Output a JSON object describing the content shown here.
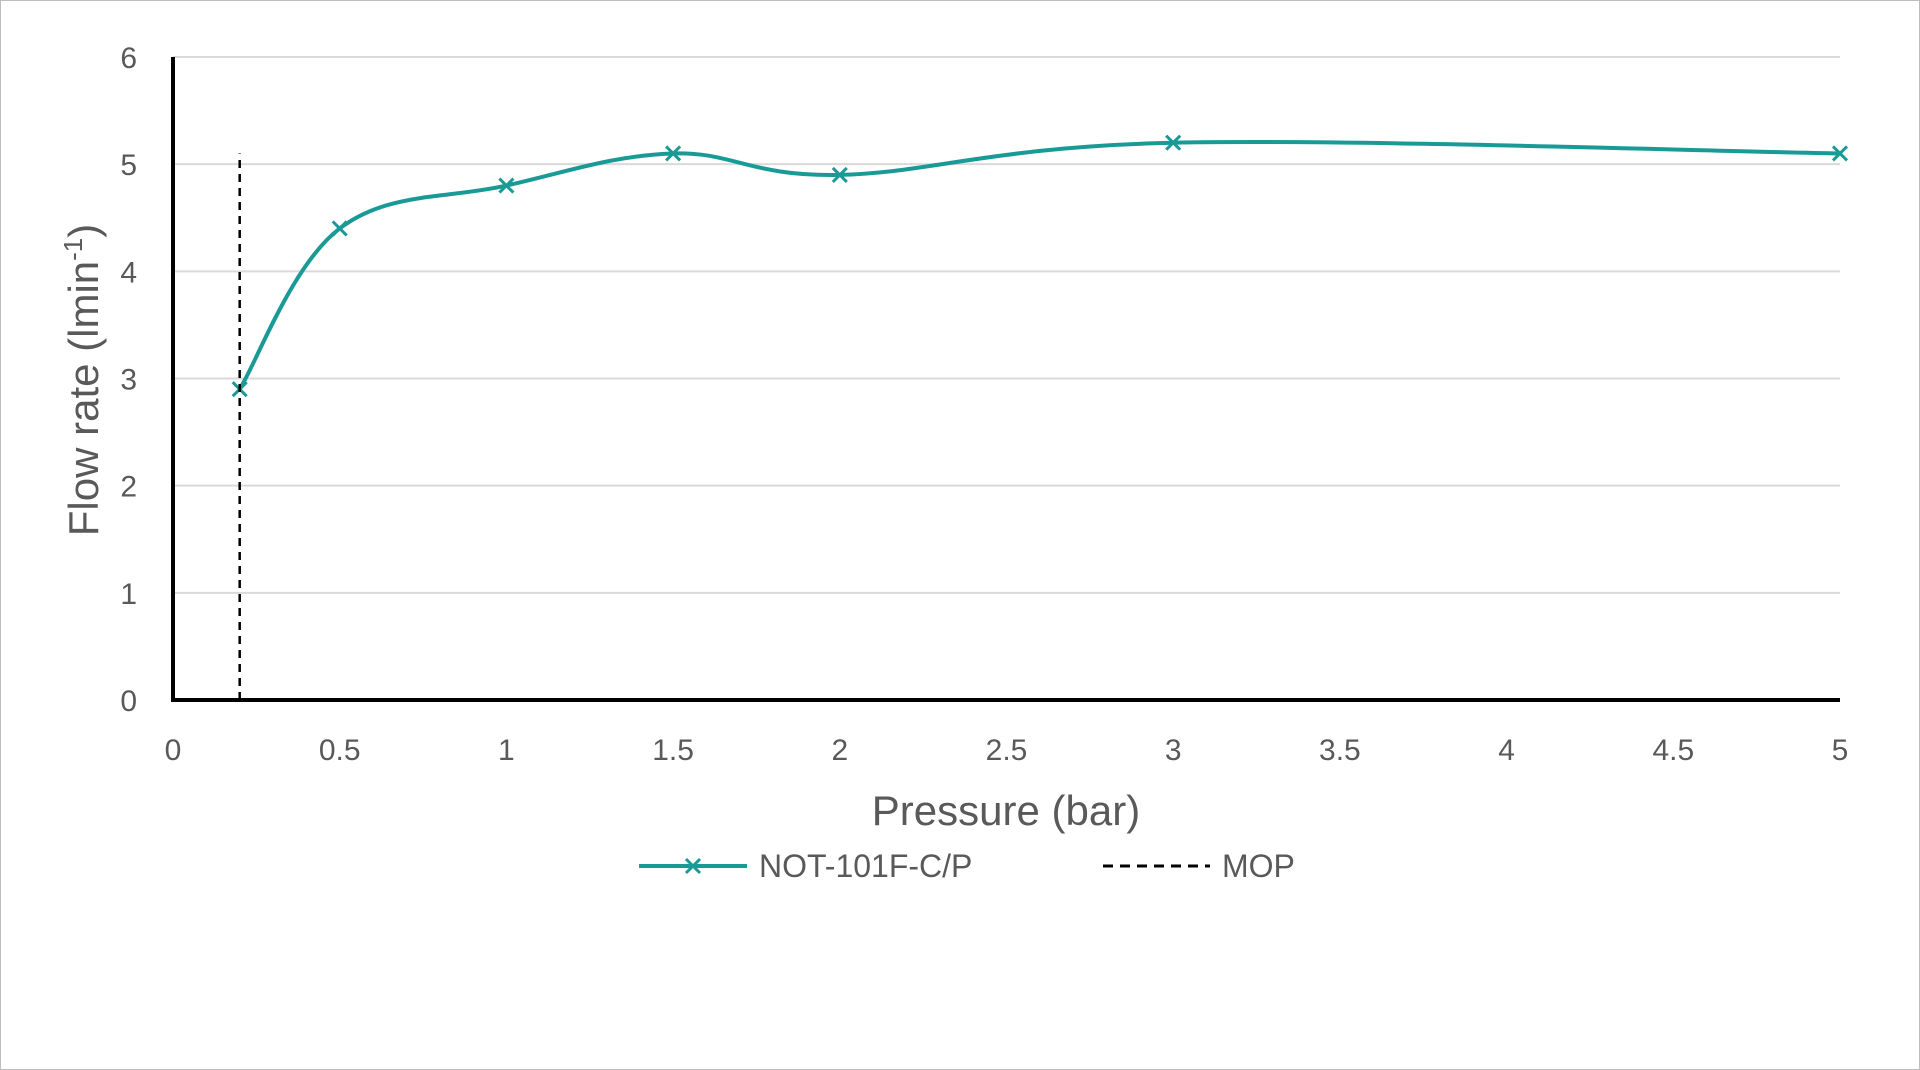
{
  "chart_data": {
    "type": "line",
    "title": "",
    "xlabel": "Pressure (bar)",
    "ylabel_main": "Flow rate (lmin",
    "ylabel_sup": "-1",
    "ylabel_close": ")",
    "xlim": [
      0,
      5
    ],
    "ylim": [
      0,
      6
    ],
    "x_ticks": [
      "0",
      "0.5",
      "1",
      "1.5",
      "2",
      "2.5",
      "3",
      "3.5",
      "4",
      "4.5",
      "5"
    ],
    "y_ticks": [
      "0",
      "1",
      "2",
      "3",
      "4",
      "5",
      "6"
    ],
    "grid": true,
    "legend_position": "bottom",
    "series": [
      {
        "name": "NOT-101F-C/P",
        "color": "#1a9a96",
        "marker": "x",
        "smooth": true,
        "points": [
          {
            "x": 0.2,
            "y": 2.9
          },
          {
            "x": 0.5,
            "y": 4.4
          },
          {
            "x": 1.0,
            "y": 4.8
          },
          {
            "x": 1.5,
            "y": 5.1
          },
          {
            "x": 2.0,
            "y": 4.9
          },
          {
            "x": 3.0,
            "y": 5.2
          },
          {
            "x": 5.0,
            "y": 5.1
          }
        ]
      },
      {
        "name": "MOP",
        "color": "#000000",
        "style": "dashed",
        "points": [
          {
            "x": 0.2,
            "y": 0
          },
          {
            "x": 0.2,
            "y": 5.1
          }
        ]
      }
    ]
  }
}
